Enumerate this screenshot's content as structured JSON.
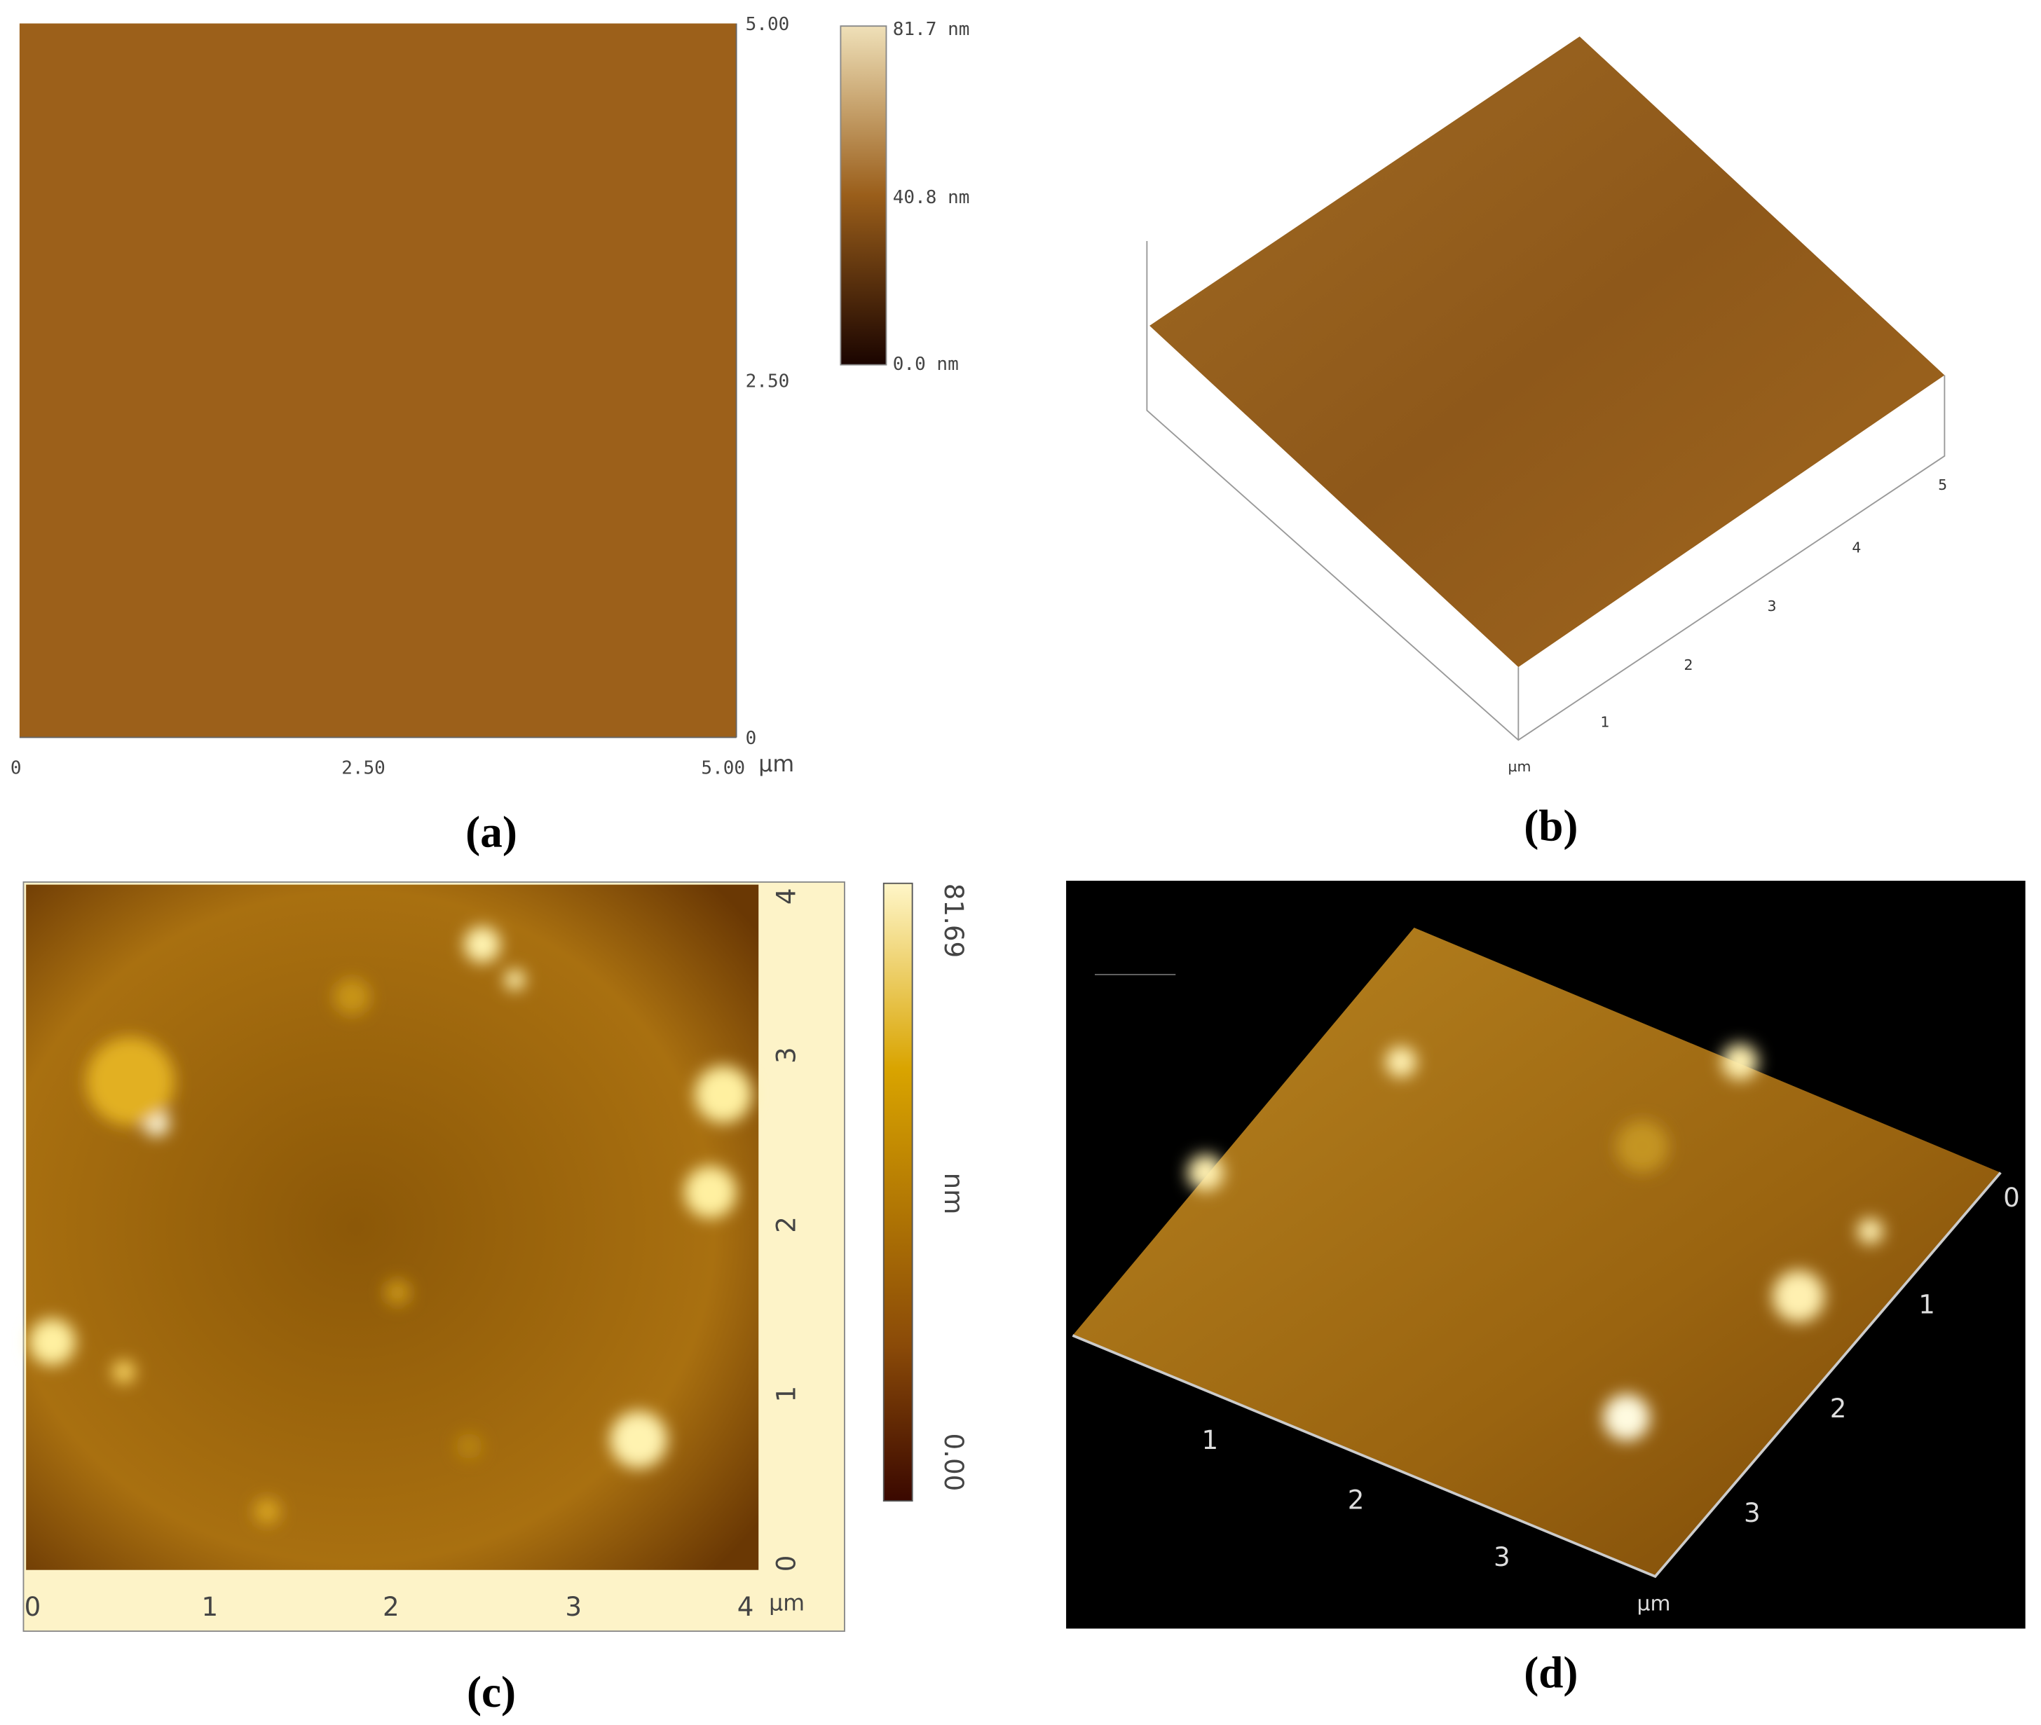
{
  "panels": [
    {
      "caption": "(a)",
      "y_ticks": [
        "5.00",
        "2.50",
        "0"
      ],
      "x_ticks": [
        "0",
        "2.50",
        "5.00"
      ],
      "unit": "µm",
      "colorbar": [
        "81.7 nm",
        "40.8 nm",
        "0.0 nm"
      ]
    },
    {
      "caption": "(b)",
      "ticks": [
        "1",
        "2",
        "3",
        "4",
        "5"
      ],
      "unit": "µm"
    },
    {
      "caption": "(c)",
      "y_ticks": [
        "0",
        "1",
        "2",
        "3",
        "4"
      ],
      "x_ticks": [
        "0",
        "1",
        "2",
        "3",
        "4"
      ],
      "unit": "µm",
      "colorbar": [
        "81.69",
        "nm",
        "0.00"
      ]
    },
    {
      "caption": "(d)",
      "right_ticks": [
        "0",
        "1",
        "2",
        "3"
      ],
      "front_ticks": [
        "1",
        "2",
        "3"
      ],
      "unit": "µm"
    }
  ]
}
